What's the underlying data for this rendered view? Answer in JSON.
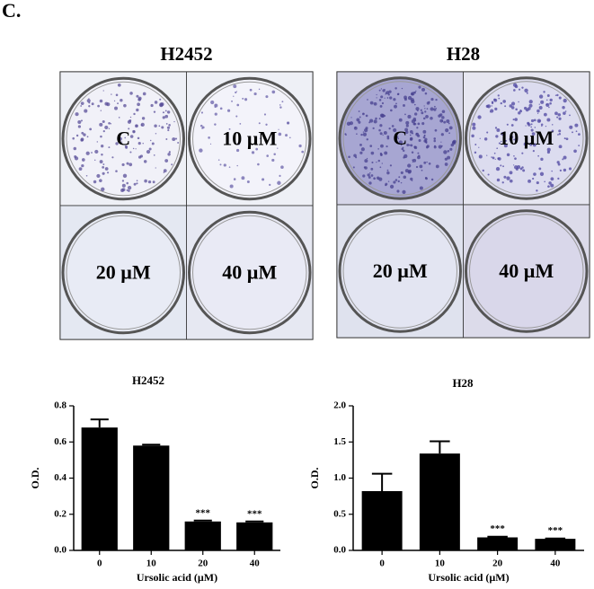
{
  "panel_label": "C.",
  "plates": [
    {
      "title": "H2452",
      "wells": [
        "C",
        "10 µM",
        "20 µM",
        "40 µM"
      ]
    },
    {
      "title": "H28",
      "wells": [
        "C",
        "10 µM",
        "20 µM",
        "40 µM"
      ]
    }
  ],
  "chart_data": [
    {
      "type": "bar",
      "title": "H2452",
      "x_label": "Ursolic acid (µM)",
      "y_label": "O.D.",
      "categories": [
        "0",
        "10",
        "20",
        "40"
      ],
      "values": [
        0.68,
        0.58,
        0.16,
        0.155
      ],
      "errors": [
        0.045,
        0.005,
        0.005,
        0.005
      ],
      "annotations": [
        null,
        null,
        "***",
        "***"
      ],
      "color": "#000000",
      "ylim": [
        0,
        0.8
      ],
      "yticks": [
        {
          "value": 0,
          "label": "0.0"
        },
        0.2,
        0.4,
        0.6,
        0.8
      ]
    },
    {
      "type": "bar",
      "title": "H28",
      "x_label": "Ursolic acid (µM)",
      "y_label": "O.D.",
      "categories": [
        "0",
        "10",
        "20",
        "40"
      ],
      "values": [
        0.82,
        1.34,
        0.18,
        0.16
      ],
      "errors": [
        0.24,
        0.17,
        0.01,
        0.005
      ],
      "annotations": [
        null,
        null,
        "***",
        "***"
      ],
      "color": "#000000",
      "ylim": [
        0,
        2
      ],
      "yticks": [
        {
          "value": 0,
          "label": "0.0"
        },
        0.5,
        {
          "value": 1,
          "label": "1.0"
        },
        1.5,
        {
          "value": 2,
          "label": "2.0"
        }
      ]
    }
  ]
}
